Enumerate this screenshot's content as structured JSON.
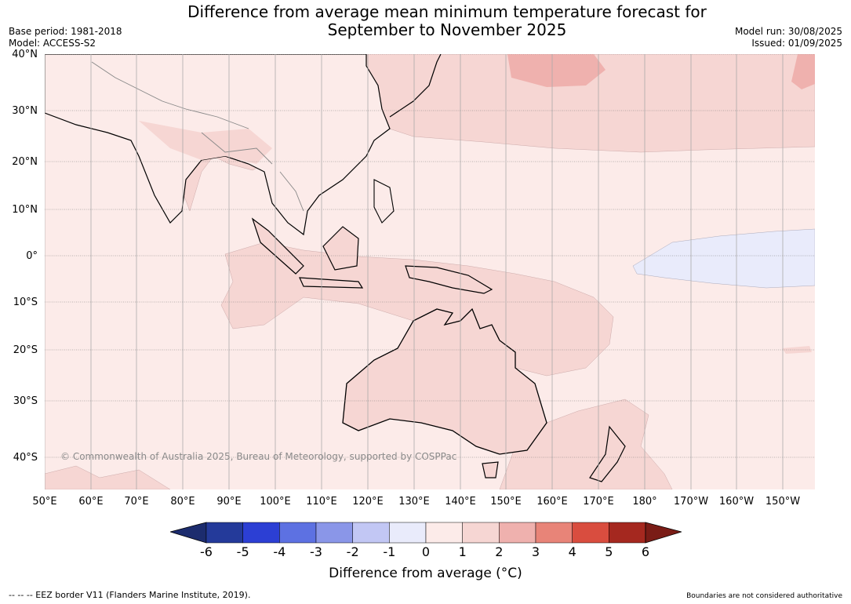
{
  "header": {
    "title_line1": "Difference from average mean minimum temperature forecast for",
    "title_line2": "September to November 2025",
    "base_period": "Base period: 1981-2018",
    "model": "Model: ACCESS-S2",
    "model_run": "Model run: 30/08/2025",
    "issued": "Issued: 01/09/2025"
  },
  "map": {
    "lat_labels": [
      "40°N",
      "30°N",
      "20°N",
      "10°N",
      "0°",
      "10°S",
      "20°S",
      "30°S",
      "40°S"
    ],
    "lon_labels": [
      "50°E",
      "60°E",
      "70°E",
      "80°E",
      "90°E",
      "100°E",
      "110°E",
      "120°E",
      "130°E",
      "140°E",
      "150°E",
      "160°E",
      "170°E",
      "180°",
      "170°W",
      "160°W",
      "150°W"
    ],
    "credit": "© Commonwealth of Australia 2025, Bureau of Meteorology, supported by COSPPac",
    "colors": {
      "ocean": "#fcebe9",
      "land_warm": "#f6d6d3",
      "warm2": "#efb1ae",
      "cool": "#e9ebfb",
      "hot": "#c94238",
      "coast": "#000000",
      "border": "#888888",
      "grid": "#777777"
    }
  },
  "colorbar": {
    "ticks": [
      "-6",
      "-5",
      "-4",
      "-3",
      "-2",
      "-1",
      "0",
      "1",
      "2",
      "3",
      "4",
      "5",
      "6"
    ],
    "colors": [
      "#243a9a",
      "#2c3fd4",
      "#5d71e2",
      "#8a96e8",
      "#c2c7f4",
      "#e9ebfb",
      "#fcebe9",
      "#f6d6d3",
      "#efb1ae",
      "#e88478",
      "#d94d3f",
      "#a5281f"
    ],
    "low_color": "#1c2c6e",
    "high_color": "#7a1c16",
    "label": "Difference from average (°C)"
  },
  "footer": {
    "eez": "--  --  -- EEZ border V11 (Flanders Marine Institute, 2019).",
    "boundaries": "Boundaries are not considered authoritative"
  }
}
